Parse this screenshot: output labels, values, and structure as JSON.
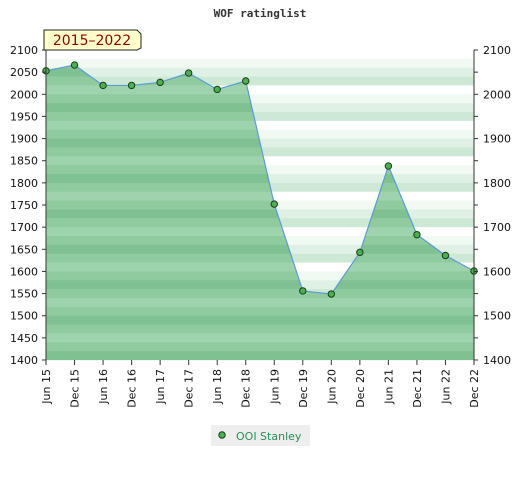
{
  "chart_data": {
    "type": "area",
    "title": "WOF ratinglist",
    "period_label": "2015–2022",
    "categories": [
      "Jun 15",
      "Dec 15",
      "Jun 16",
      "Dec 16",
      "Jun 17",
      "Dec 17",
      "Jun 18",
      "Dec 18",
      "Jun 19",
      "Dec 19",
      "Jun 20",
      "Dec 20",
      "Jun 21",
      "Dec 21",
      "Jun 22",
      "Dec 22"
    ],
    "series": [
      {
        "name": "OOI Stanley",
        "values": [
          2053,
          2066,
          2020,
          2020,
          2027,
          2048,
          2011,
          2030,
          1752,
          1556,
          1549,
          1643,
          1838,
          1683,
          1636,
          1601
        ]
      }
    ],
    "y_ticks": [
      2100,
      2050,
      2000,
      1950,
      1900,
      1850,
      1800,
      1750,
      1700,
      1650,
      1600,
      1550,
      1500,
      1450,
      1400
    ],
    "ylim": [
      1400,
      2100
    ],
    "legend_position": "bottom-center",
    "colors": {
      "line": "#5b9bd5",
      "marker_fill": "#4caf50",
      "marker_stroke": "#1b3d1b",
      "band_light": [
        "#ffffff",
        "#f0f9f2",
        "#dff1e4",
        "#cde9d5"
      ],
      "band_dark": [
        "#9fd3ae",
        "#8fcb9f",
        "#7fc191",
        "#8fcb9f"
      ],
      "legend_text": "#2e8b57"
    }
  }
}
